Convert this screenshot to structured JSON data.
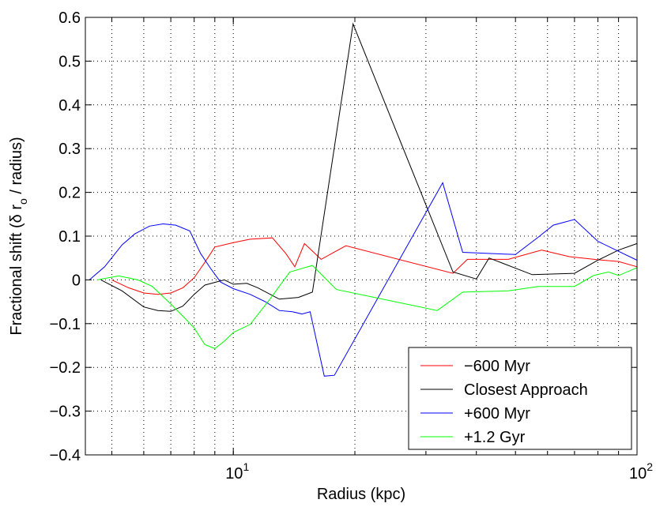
{
  "chart_data": {
    "type": "line",
    "title": "",
    "xlabel": "Radius (kpc)",
    "ylabel": "Fractional shift (δ r",
    "ylabel_sub": "o",
    "ylabel_tail": " / radius)",
    "xscale": "log",
    "xlim": [
      4.3,
      100
    ],
    "ylim": [
      -0.4,
      0.6
    ],
    "grid": true,
    "legend_position": "bottom-right",
    "x_ticks": [
      {
        "value": 10,
        "base": "10",
        "exp": "1"
      },
      {
        "value": 100,
        "base": "10",
        "exp": "2"
      }
    ],
    "y_ticks": [
      {
        "value": 0.6,
        "label": "0.6"
      },
      {
        "value": 0.5,
        "label": "0.5"
      },
      {
        "value": 0.4,
        "label": "0.4"
      },
      {
        "value": 0.3,
        "label": "0.3"
      },
      {
        "value": 0.2,
        "label": "0.2"
      },
      {
        "value": 0.1,
        "label": "0.1"
      },
      {
        "value": 0,
        "label": "0"
      },
      {
        "value": -0.1,
        "label": "−0.1"
      },
      {
        "value": -0.2,
        "label": "−0.2"
      },
      {
        "value": -0.3,
        "label": "−0.3"
      },
      {
        "value": -0.4,
        "label": "−0.4"
      }
    ],
    "series": [
      {
        "name": "−600 Myr",
        "color": "#ff0000",
        "points": [
          [
            5.0,
            0.0
          ],
          [
            5.5,
            -0.018
          ],
          [
            6.0,
            -0.03
          ],
          [
            6.5,
            -0.033
          ],
          [
            7.0,
            -0.03
          ],
          [
            7.5,
            -0.018
          ],
          [
            8.0,
            0.005
          ],
          [
            8.5,
            0.04
          ],
          [
            9.0,
            0.075
          ],
          [
            10.0,
            0.085
          ],
          [
            11.0,
            0.093
          ],
          [
            12.5,
            0.096
          ],
          [
            13.5,
            0.06
          ],
          [
            14.2,
            0.03
          ],
          [
            15.0,
            0.083
          ],
          [
            16.5,
            0.047
          ],
          [
            19.0,
            0.078
          ],
          [
            35.0,
            0.015
          ],
          [
            38.0,
            0.047
          ],
          [
            48.0,
            0.047
          ],
          [
            58.0,
            0.068
          ],
          [
            68.0,
            0.053
          ],
          [
            80.0,
            0.046
          ],
          [
            90.0,
            0.042
          ],
          [
            100.0,
            0.03
          ]
        ]
      },
      {
        "name": "Closest Approach",
        "color": "#000000",
        "points": [
          [
            4.7,
            0.0
          ],
          [
            5.3,
            -0.025
          ],
          [
            6.0,
            -0.062
          ],
          [
            6.5,
            -0.07
          ],
          [
            7.0,
            -0.072
          ],
          [
            7.5,
            -0.06
          ],
          [
            8.0,
            -0.033
          ],
          [
            8.5,
            -0.012
          ],
          [
            9.5,
            0.0
          ],
          [
            10.0,
            -0.01
          ],
          [
            10.8,
            -0.008
          ],
          [
            11.5,
            -0.018
          ],
          [
            13.0,
            -0.044
          ],
          [
            14.5,
            -0.04
          ],
          [
            15.7,
            -0.028
          ],
          [
            19.8,
            0.585
          ],
          [
            35.0,
            0.018
          ],
          [
            40.0,
            0.002
          ],
          [
            43.0,
            0.05
          ],
          [
            55.0,
            0.012
          ],
          [
            70.0,
            0.015
          ],
          [
            80.0,
            0.045
          ],
          [
            90.0,
            0.068
          ],
          [
            100.0,
            0.083
          ]
        ]
      },
      {
        "name": "+600 Myr",
        "color": "#0000ff",
        "points": [
          [
            4.4,
            0.0
          ],
          [
            4.8,
            0.03
          ],
          [
            5.3,
            0.08
          ],
          [
            5.7,
            0.105
          ],
          [
            6.2,
            0.123
          ],
          [
            6.7,
            0.128
          ],
          [
            7.2,
            0.125
          ],
          [
            7.8,
            0.112
          ],
          [
            8.3,
            0.06
          ],
          [
            8.8,
            0.025
          ],
          [
            9.3,
            -0.005
          ],
          [
            10.0,
            -0.02
          ],
          [
            11.0,
            -0.033
          ],
          [
            12.0,
            -0.05
          ],
          [
            13.0,
            -0.07
          ],
          [
            14.0,
            -0.073
          ],
          [
            14.8,
            -0.078
          ],
          [
            15.5,
            -0.073
          ],
          [
            16.8,
            -0.22
          ],
          [
            17.8,
            -0.218
          ],
          [
            33.0,
            0.222
          ],
          [
            37.0,
            0.063
          ],
          [
            50.0,
            0.058
          ],
          [
            57.0,
            0.098
          ],
          [
            62.0,
            0.125
          ],
          [
            70.0,
            0.138
          ],
          [
            80.0,
            0.088
          ],
          [
            100.0,
            0.045
          ]
        ]
      },
      {
        "name": "+1.2 Gyr",
        "color": "#00ff00",
        "points": [
          [
            4.6,
            0.0
          ],
          [
            5.2,
            0.009
          ],
          [
            5.8,
            0.0
          ],
          [
            6.3,
            -0.015
          ],
          [
            7.0,
            -0.055
          ],
          [
            7.5,
            -0.083
          ],
          [
            8.0,
            -0.11
          ],
          [
            8.5,
            -0.148
          ],
          [
            9.0,
            -0.157
          ],
          [
            9.5,
            -0.14
          ],
          [
            10.0,
            -0.12
          ],
          [
            11.0,
            -0.102
          ],
          [
            12.3,
            -0.045
          ],
          [
            13.8,
            0.018
          ],
          [
            15.7,
            0.033
          ],
          [
            18.0,
            -0.022
          ],
          [
            32.0,
            -0.07
          ],
          [
            37.0,
            -0.028
          ],
          [
            48.0,
            -0.025
          ],
          [
            57.0,
            -0.015
          ],
          [
            70.0,
            -0.015
          ],
          [
            78.0,
            0.01
          ],
          [
            85.0,
            0.018
          ],
          [
            90.0,
            0.01
          ],
          [
            100.0,
            0.028
          ]
        ]
      }
    ]
  }
}
